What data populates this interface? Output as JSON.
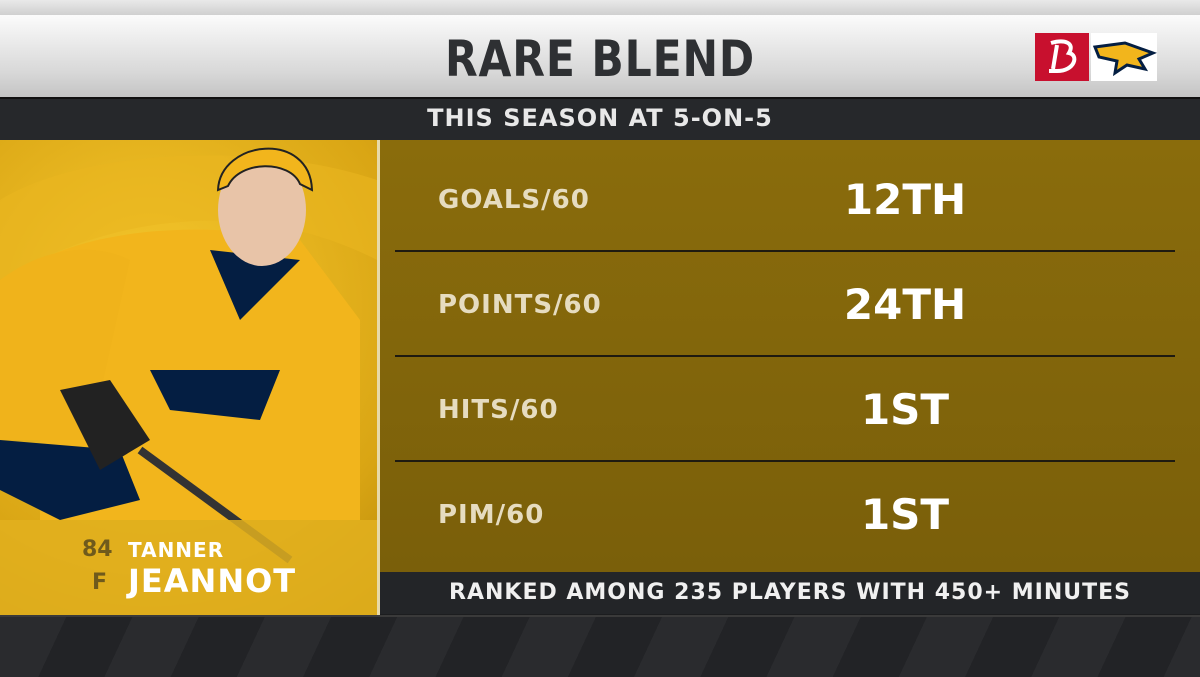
{
  "header": {
    "title": "RARE BLEND",
    "subtitle": "THIS SEASON AT 5-ON-5"
  },
  "player": {
    "number": "84",
    "position": "F",
    "first_name": "TANNER",
    "last_name": "JEANNOT"
  },
  "stats": [
    {
      "label": "GOALS/60",
      "rank": "12TH"
    },
    {
      "label": "POINTS/60",
      "rank": "24TH"
    },
    {
      "label": "HITS/60",
      "rank": "1ST"
    },
    {
      "label": "PIM/60",
      "rank": "1ST"
    }
  ],
  "footer": "RANKED AMONG 235 PLAYERS WITH 450+ MINUTES"
}
